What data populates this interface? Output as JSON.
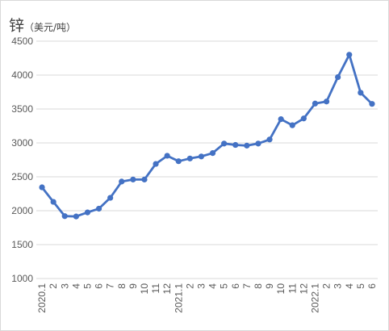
{
  "chart_data": {
    "type": "line",
    "title": "锌",
    "unit_label": "（美元/吨）",
    "categories": [
      "2020.1",
      "2",
      "3",
      "4",
      "5",
      "6",
      "7",
      "8",
      "9",
      "10",
      "11",
      "12",
      "2021.1",
      "2",
      "3",
      "4",
      "5",
      "6",
      "7",
      "8",
      "9",
      "10",
      "11",
      "12",
      "2022.1",
      "2",
      "3",
      "4",
      "5",
      "6"
    ],
    "series": [
      {
        "values": [
          2345,
          2130,
          1920,
          1915,
          1975,
          2030,
          2190,
          2430,
          2460,
          2460,
          2690,
          2810,
          2730,
          2770,
          2800,
          2850,
          2990,
          2970,
          2960,
          2990,
          3050,
          3350,
          3260,
          3360,
          3580,
          3610,
          3970,
          4300,
          3740,
          3575
        ]
      }
    ],
    "ylim": [
      1000,
      4500
    ],
    "yticks": [
      1000,
      1500,
      2000,
      2500,
      3000,
      3500,
      4000,
      4500
    ],
    "grid": true,
    "legend": "none",
    "color": "#4472c4"
  }
}
